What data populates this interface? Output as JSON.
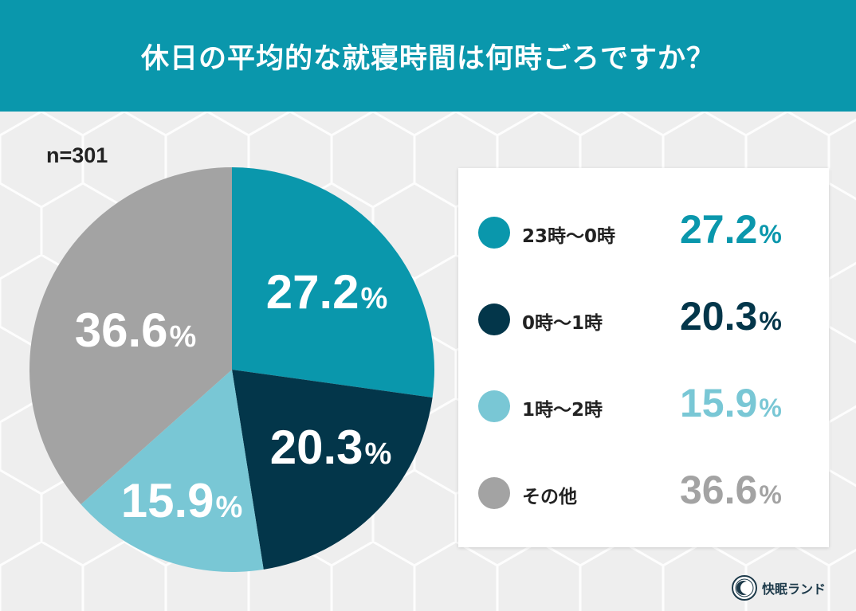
{
  "header": {
    "title": "休日の平均的な就寝時間は何時ごろですか？"
  },
  "sample_size": "n=301",
  "colors": {
    "header_bg": "#0a97ac",
    "series": [
      "#0a97ac",
      "#03364a",
      "#79c7d5",
      "#a3a3a3"
    ]
  },
  "chart_data": {
    "type": "pie",
    "title": "休日の平均的な就寝時間は何時ごろですか？",
    "categories": [
      "23時〜0時",
      "0時〜1時",
      "1時〜2時",
      "その他"
    ],
    "values": [
      27.2,
      20.3,
      15.9,
      36.6
    ],
    "value_labels": [
      "27.2",
      "20.3",
      "15.9",
      "36.6"
    ],
    "unit": "%",
    "legend_placement": "right"
  },
  "legend": {
    "items": [
      {
        "label": "23時〜0時",
        "value": "27.2",
        "unit": "%"
      },
      {
        "label": "0時〜1時",
        "value": "20.3",
        "unit": "%"
      },
      {
        "label": "1時〜2時",
        "value": "15.9",
        "unit": "%"
      },
      {
        "label": "その他",
        "value": "36.6",
        "unit": "%"
      }
    ]
  },
  "brand": {
    "name": "快眠ランド",
    "icon": "moon-logo-icon"
  }
}
